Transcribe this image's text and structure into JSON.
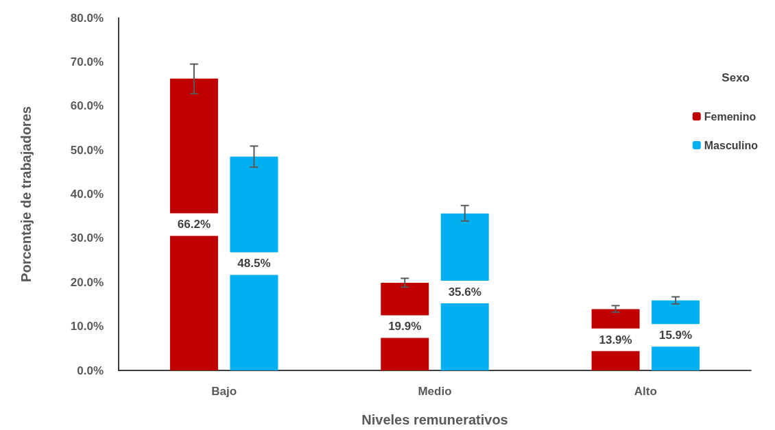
{
  "chart_data": {
    "type": "bar",
    "xlabel": "Niveles remunerativos",
    "ylabel": "Porcentaje de trabajadores",
    "categories": [
      "Bajo",
      "Medio",
      "Alto"
    ],
    "series": [
      {
        "name": "Femenino",
        "color": "#c00000",
        "values": [
          66.2,
          19.9,
          13.9
        ],
        "value_labels": [
          "66.2%",
          "19.9%",
          "13.9%"
        ],
        "errors": [
          [
            62.8,
            69.5
          ],
          [
            18.9,
            20.9
          ],
          [
            13.2,
            14.7
          ]
        ]
      },
      {
        "name": "Masculino",
        "color": "#00b0f0",
        "values": [
          48.5,
          35.6,
          15.9
        ],
        "value_labels": [
          "48.5%",
          "35.6%",
          "15.9%"
        ],
        "errors": [
          [
            46.1,
            50.9
          ],
          [
            33.9,
            37.4
          ],
          [
            15.1,
            16.7
          ]
        ]
      }
    ],
    "ylim": [
      0,
      80
    ],
    "yticks": [
      {
        "value": 0,
        "label": "0.0%"
      },
      {
        "value": 10,
        "label": "10.0%"
      },
      {
        "value": 20,
        "label": "20.0%"
      },
      {
        "value": 30,
        "label": "30.0%"
      },
      {
        "value": 40,
        "label": "40.0%"
      },
      {
        "value": 50,
        "label": "50.0%"
      },
      {
        "value": 60,
        "label": "60.0%"
      },
      {
        "value": 70,
        "label": "70.0%"
      },
      {
        "value": 80,
        "label": "80.0%"
      }
    ],
    "legend": "right",
    "legend_title": "Sexo",
    "grid": false
  }
}
